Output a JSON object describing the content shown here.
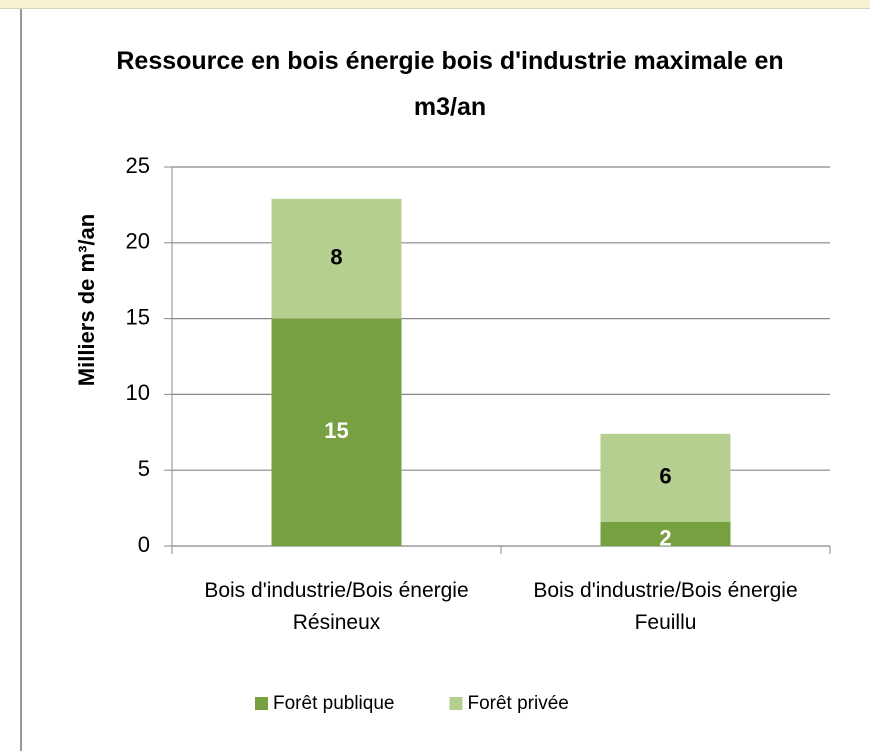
{
  "chart_data": {
    "type": "stacked_bar",
    "title": "Ressource en bois énergie bois d'industrie maximale en m3/an",
    "ylabel": "Milliers de m³/an",
    "categories": [
      "Bois d'industrie/Bois énergie Résineux",
      "Bois d'industrie/Bois énergie Feuillu"
    ],
    "series": [
      {
        "name": "Forêt publique",
        "color": "#77a040",
        "values": [
          15,
          1.6
        ],
        "value_labels": [
          "15",
          "2"
        ]
      },
      {
        "name": "Forêt privée",
        "color": "#b4cf8f",
        "values": [
          7.9,
          5.8
        ],
        "value_labels": [
          "8",
          "6"
        ]
      }
    ],
    "ylim": [
      0,
      25
    ],
    "yticks": [
      0,
      5,
      10,
      15,
      20,
      25
    ],
    "grid": true
  }
}
